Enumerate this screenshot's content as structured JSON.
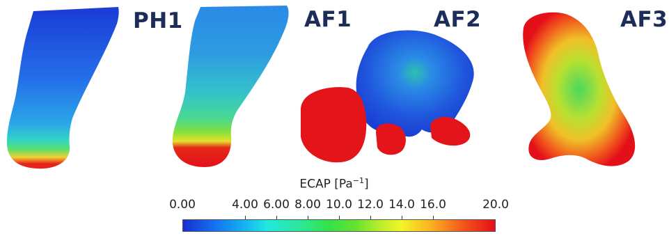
{
  "case_labels": {
    "ph1": "PH1",
    "af1": "AF1",
    "af2": "AF2",
    "af3": "AF3"
  },
  "colorbar": {
    "title_main": "ECAP [Pa",
    "title_exp": "−1",
    "title_close": "]",
    "min": 0,
    "max": 20,
    "ticks": [
      {
        "value": 0,
        "label": "0.00"
      },
      {
        "value": 4,
        "label": "4.00"
      },
      {
        "value": 6,
        "label": "6.00"
      },
      {
        "value": 8,
        "label": "8.00"
      },
      {
        "value": 10,
        "label": "10.0"
      },
      {
        "value": 12,
        "label": "12.0"
      },
      {
        "value": 14,
        "label": "14.0"
      },
      {
        "value": 16,
        "label": "16.0"
      },
      {
        "value": 20,
        "label": "20.0"
      }
    ],
    "colors": {
      "low": "#1a2fd0",
      "mid": "#33e24a",
      "high": "#e3101a"
    }
  }
}
